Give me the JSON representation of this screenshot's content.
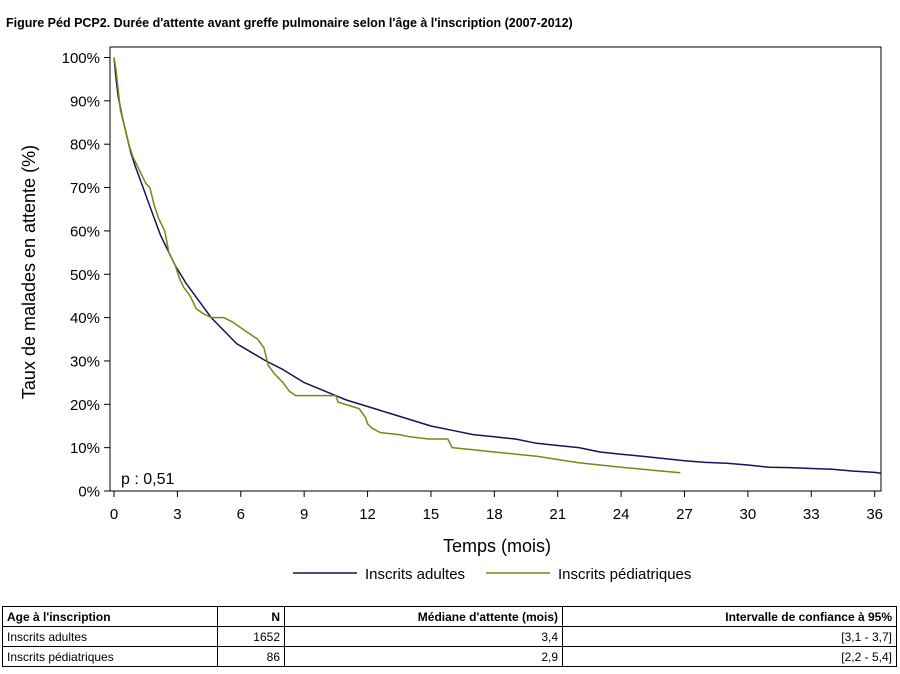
{
  "title": "Figure Péd PCP2. Durée d'attente avant greffe pulmonaire selon l'âge à l'inscription (2007-2012)",
  "chart_data": {
    "type": "line",
    "title": "Figure Péd PCP2. Durée d'attente avant greffe pulmonaire selon l'âge à l'inscription (2007-2012)",
    "xlabel": "Temps (mois)",
    "ylabel": "Taux de malades en attente (%)",
    "xlim": [
      0,
      36.3
    ],
    "ylim": [
      0,
      100
    ],
    "x_ticks": [
      0,
      3,
      6,
      9,
      12,
      15,
      18,
      21,
      24,
      27,
      30,
      33,
      36
    ],
    "x_tick_labels": [
      "0",
      "3",
      "6",
      "9",
      "12",
      "15",
      "18",
      "21",
      "24",
      "27",
      "30",
      "33",
      "36"
    ],
    "y_ticks": [
      0,
      10,
      20,
      30,
      40,
      50,
      60,
      70,
      80,
      90,
      100
    ],
    "y_tick_labels": [
      "0%",
      "10%",
      "20%",
      "30%",
      "40%",
      "50%",
      "60%",
      "70%",
      "80%",
      "90%",
      "100%"
    ],
    "grid": false,
    "legend_position": "bottom",
    "annotation": "p : 0,51",
    "series": [
      {
        "name": "Inscrits adultes",
        "color": "#14145a",
        "x": [
          0,
          0.1,
          0.2,
          0.4,
          0.6,
          0.8,
          1.0,
          1.3,
          1.6,
          1.9,
          2.2,
          2.5,
          2.9,
          3.4,
          4.0,
          4.6,
          5.2,
          5.8,
          6.5,
          7.2,
          8.0,
          9.0,
          10.0,
          11.0,
          12.0,
          13.0,
          14.0,
          15.0,
          16.0,
          17.0,
          18.0,
          19.0,
          20.0,
          21.0,
          22.0,
          23.0,
          24.0,
          25.0,
          26.0,
          27.0,
          28.0,
          29.0,
          30.0,
          31.0,
          32.0,
          33.0,
          34.0,
          35.0,
          36.0,
          36.3
        ],
        "values": [
          100,
          95,
          91,
          86,
          82,
          78,
          75,
          71,
          67,
          63,
          59,
          56,
          52,
          48,
          44,
          40,
          37,
          34,
          32,
          30,
          28,
          25,
          23,
          21,
          19.5,
          18,
          16.5,
          15,
          14,
          13,
          12.5,
          12,
          11,
          10.5,
          10,
          9,
          8.5,
          8,
          7.5,
          7,
          6.6,
          6.4,
          6.0,
          5.5,
          5.4,
          5.2,
          5.0,
          4.6,
          4.3,
          4.1
        ]
      },
      {
        "name": "Inscrits pédiatriques",
        "color": "#6e8c14",
        "x": [
          0,
          0.1,
          0.3,
          0.5,
          0.7,
          0.9,
          1.0,
          1.2,
          1.5,
          1.7,
          1.9,
          2.1,
          2.2,
          2.4,
          2.6,
          2.8,
          2.9,
          3.1,
          3.3,
          3.6,
          3.8,
          3.9,
          4.2,
          4.6,
          5.2,
          5.6,
          6.2,
          6.8,
          7.1,
          7.3,
          7.6,
          8.0,
          8.3,
          8.6,
          9.0,
          10.5,
          10.6,
          11.6,
          11.9,
          12.0,
          12.2,
          12.6,
          13.5,
          14.0,
          14.9,
          15.1,
          15.8,
          16.0,
          17.0,
          18.0,
          20.0,
          22.0,
          24.0,
          25.5,
          26.8
        ],
        "values": [
          100,
          97,
          88,
          84,
          80,
          77,
          76,
          74,
          71,
          70,
          66,
          63,
          62,
          60,
          55,
          53,
          52,
          49,
          47,
          45,
          43,
          42,
          41,
          40,
          40,
          39,
          37,
          35,
          33,
          29,
          27,
          25,
          23,
          22,
          22,
          22,
          20.5,
          19,
          17,
          15.5,
          14.5,
          13.5,
          13,
          12.5,
          12,
          12,
          12,
          10,
          9.5,
          9,
          8,
          6.5,
          5.5,
          4.8,
          4.2
        ]
      }
    ]
  },
  "table": {
    "headers": [
      "Age à l'inscription",
      "N",
      "Médiane d'attente (mois)",
      "Intervalle de confiance à 95%"
    ],
    "rows": [
      [
        "Inscrits adultes",
        "1652",
        "3,4",
        "[3,1 - 3,7]"
      ],
      [
        "Inscrits pédiatriques",
        "86",
        "2,9",
        "[2,2 - 5,4]"
      ]
    ]
  }
}
